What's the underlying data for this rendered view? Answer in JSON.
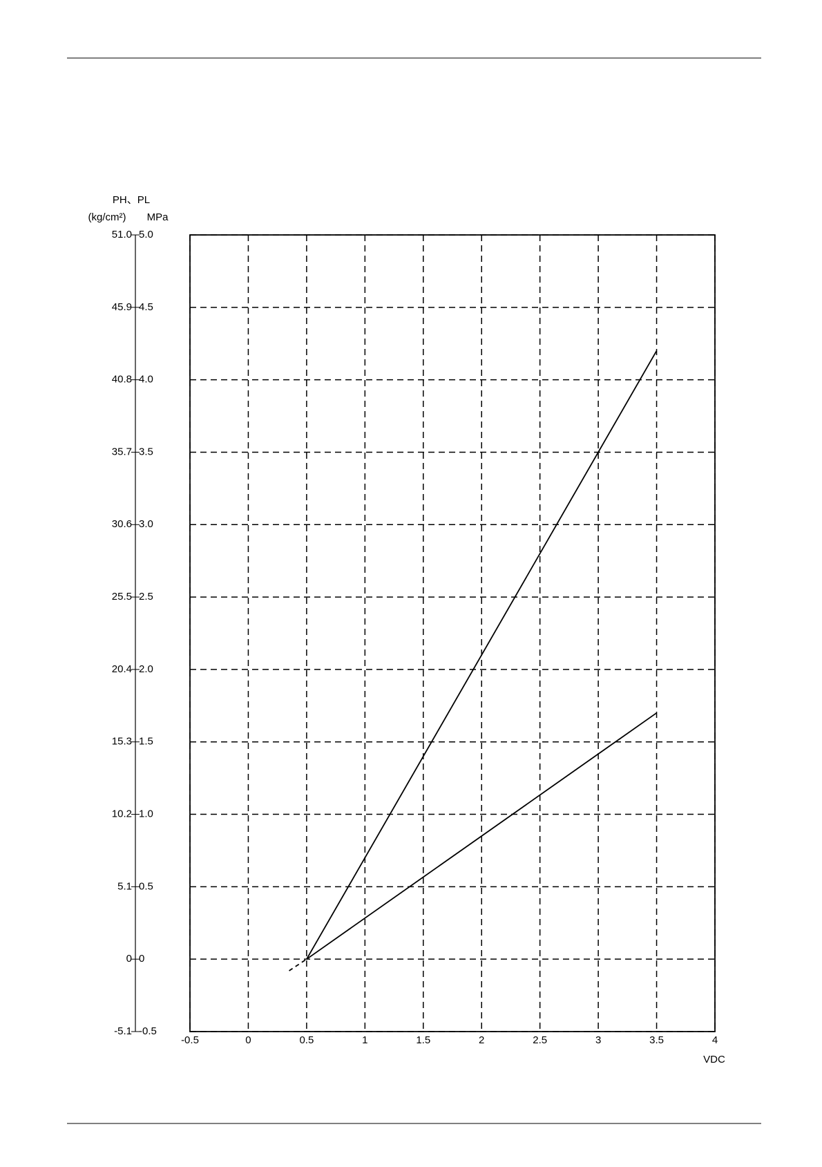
{
  "chart_data": {
    "type": "line",
    "y_title": "PH、PL",
    "y2_unit": "(kg/cm²)",
    "y_unit": "MPa",
    "x_title": "VDC",
    "xlim": [
      -0.5,
      4
    ],
    "xticks": [
      -0.5,
      0,
      0.5,
      1,
      1.5,
      2,
      2.5,
      3,
      3.5,
      4
    ],
    "ylim": [
      -0.5,
      5
    ],
    "yticks": [
      -0.5,
      0,
      0.5,
      {
        "value": 1,
        "label": "1.0"
      },
      1.5,
      {
        "value": 2,
        "label": "2.0"
      },
      2.5,
      {
        "value": 3,
        "label": "3.0"
      },
      3.5,
      {
        "value": 4,
        "label": "4.0"
      },
      4.5,
      {
        "value": 5,
        "label": "5.0"
      }
    ],
    "y2lim": [
      -5.1,
      51
    ],
    "y2ticks": [
      -5.1,
      0,
      5.1,
      10.2,
      15.3,
      20.4,
      25.5,
      30.6,
      35.7,
      40.8,
      45.9,
      {
        "value": 51,
        "label": "51.0"
      }
    ],
    "grid": true,
    "series": [
      {
        "color": "#000000",
        "x": [
          0.5,
          3.5
        ],
        "values": [
          0,
          4.2
        ]
      },
      {
        "color": "#000000",
        "x": [
          0.5,
          3.5
        ],
        "values": [
          0,
          1.7
        ]
      }
    ],
    "extrapolation": {
      "color": "#000000",
      "x": [
        0.35,
        0.5
      ],
      "values": [
        -0.08,
        0
      ]
    }
  }
}
